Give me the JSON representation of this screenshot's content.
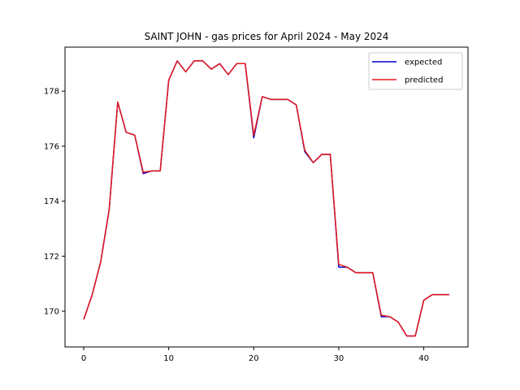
{
  "chart_data": {
    "type": "line",
    "title": "SAINT JOHN - gas prices for April 2024 - May 2024",
    "xlabel": "",
    "ylabel": "",
    "xlim": [
      -2.2,
      45.2
    ],
    "ylim": [
      168.7,
      179.6
    ],
    "xticks": [
      0,
      10,
      20,
      30,
      40
    ],
    "yticks": [
      170,
      172,
      174,
      176,
      178
    ],
    "legend": {
      "placement": "top-right",
      "entries": [
        "expected",
        "predicted"
      ]
    },
    "x": [
      0,
      1,
      2,
      3,
      4,
      5,
      6,
      7,
      8,
      9,
      10,
      11,
      12,
      13,
      14,
      15,
      16,
      17,
      18,
      19,
      20,
      21,
      22,
      23,
      24,
      25,
      26,
      27,
      28,
      29,
      30,
      31,
      32,
      33,
      34,
      35,
      36,
      37,
      38,
      39,
      40,
      41,
      42,
      43
    ],
    "series": [
      {
        "name": "expected",
        "color": "#0000cc",
        "values": [
          169.7,
          170.6,
          171.8,
          173.7,
          177.6,
          176.5,
          176.4,
          175.0,
          175.1,
          175.1,
          178.4,
          179.1,
          178.7,
          179.1,
          179.1,
          178.8,
          179.0,
          178.6,
          179.0,
          179.0,
          176.3,
          177.8,
          177.7,
          177.7,
          177.7,
          177.5,
          175.8,
          175.4,
          175.7,
          175.7,
          171.6,
          171.6,
          171.4,
          171.4,
          171.4,
          169.8,
          169.8,
          169.6,
          169.1,
          169.1,
          170.4,
          170.6,
          170.6,
          170.6
        ]
      },
      {
        "name": "predicted",
        "color": "#e8161b",
        "values": [
          169.7,
          170.6,
          171.8,
          173.7,
          177.6,
          176.5,
          176.4,
          175.05,
          175.1,
          175.1,
          178.4,
          179.1,
          178.7,
          179.1,
          179.1,
          178.8,
          179.0,
          178.6,
          179.0,
          179.0,
          176.4,
          177.8,
          177.7,
          177.7,
          177.7,
          177.5,
          175.85,
          175.4,
          175.7,
          175.7,
          171.7,
          171.6,
          171.4,
          171.4,
          171.4,
          169.85,
          169.8,
          169.6,
          169.1,
          169.1,
          170.4,
          170.6,
          170.6,
          170.6
        ]
      }
    ]
  }
}
